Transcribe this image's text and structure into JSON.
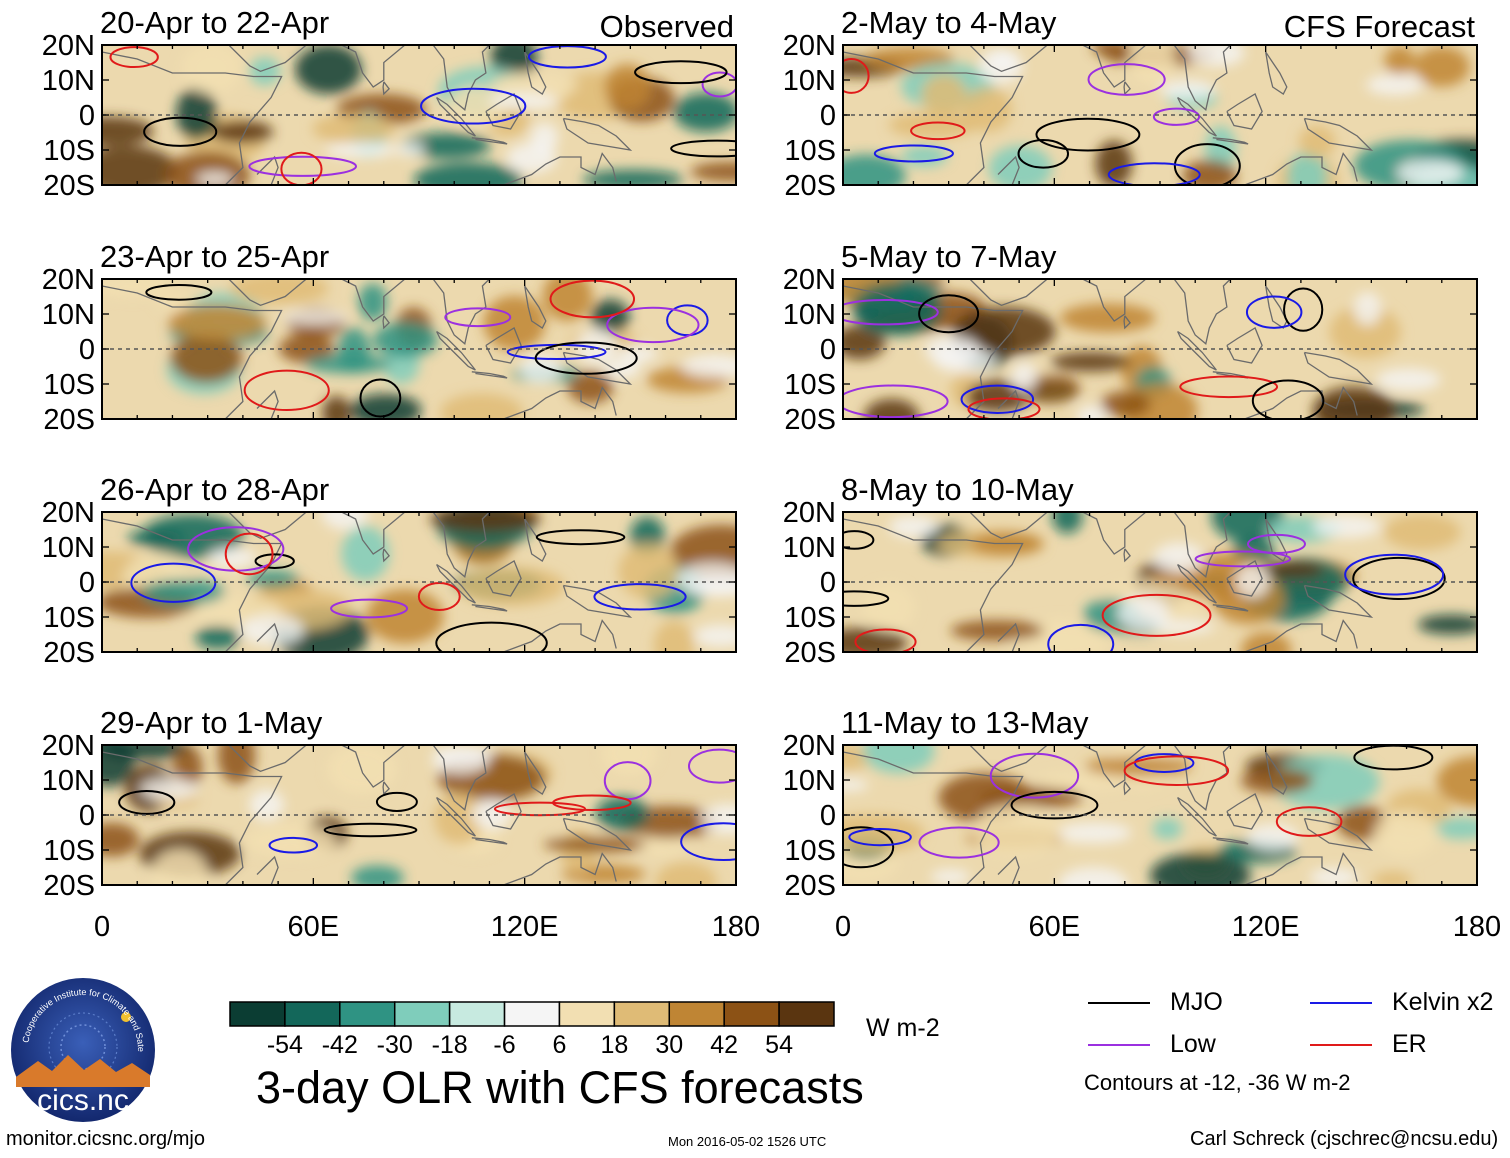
{
  "chart_data": {
    "type": "heatmap",
    "title": "3-day OLR with CFS forecasts",
    "column_tags": [
      "Observed",
      "CFS Forecast"
    ],
    "lat_ticks": [
      "20N",
      "10N",
      "0",
      "10S",
      "20S"
    ],
    "lon_ticks": [
      "0",
      "60E",
      "120E",
      "180"
    ],
    "lat_range": [
      -20,
      20
    ],
    "lon_range": [
      0,
      180
    ],
    "panels": [
      {
        "title": "20-Apr to 22-Apr",
        "column": "Observed"
      },
      {
        "title": "23-Apr to 25-Apr",
        "column": "Observed"
      },
      {
        "title": "26-Apr to 28-Apr",
        "column": "Observed"
      },
      {
        "title": "29-Apr to 1-May",
        "column": "Observed"
      },
      {
        "title": "2-May to 4-May",
        "column": "CFS Forecast"
      },
      {
        "title": "5-May to 7-May",
        "column": "CFS Forecast"
      },
      {
        "title": "8-May to 10-May",
        "column": "CFS Forecast"
      },
      {
        "title": "11-May to 13-May",
        "column": "CFS Forecast"
      }
    ],
    "colorbar": {
      "labels": [
        "-54",
        "-42",
        "-30",
        "-18",
        "-6",
        "6",
        "18",
        "30",
        "42",
        "54"
      ],
      "colors": [
        "#0b3d33",
        "#13675a",
        "#2f9383",
        "#7fcdbb",
        "#c7eae0",
        "#f5f5f5",
        "#f2dfb2",
        "#dfbb76",
        "#bf8534",
        "#8c5215",
        "#5a3510"
      ],
      "units": "W m-2"
    },
    "legend": [
      {
        "label": "MJO",
        "color": "#000000"
      },
      {
        "label": "Kelvin x2",
        "color": "#1a1ae6"
      },
      {
        "label": "Low",
        "color": "#9b30e0"
      },
      {
        "label": "ER",
        "color": "#e01a1a"
      }
    ],
    "contour_note": "Contours at -12, -36 W m-2"
  },
  "footer": {
    "url": "monitor.cicsnc.org/mjo",
    "timestamp": "Mon 2016-05-02 1526 UTC",
    "author": "Carl Schreck (cjschrec@ncsu.edu)"
  },
  "logo": {
    "text": "cics.nc",
    "arc_text": "Cooperative Institute for Climate and Satellites"
  }
}
